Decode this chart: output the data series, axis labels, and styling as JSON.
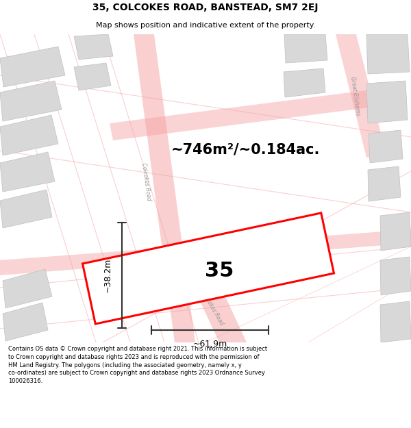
{
  "title_line1": "35, COLCOKES ROAD, BANSTEAD, SM7 2EJ",
  "title_line2": "Map shows position and indicative extent of the property.",
  "area_text": "~746m²/~0.184ac.",
  "label_width": "~61.9m",
  "label_height": "~38.2m",
  "plot_number": "35",
  "map_bg": "#f7f7f7",
  "road_color": "#f5a0a0",
  "building_color": "#d8d8d8",
  "building_edge": "#c0c0c0",
  "footnote": "Contains OS data © Crown copyright and database right 2021. This information is subject\nto Crown copyright and database rights 2023 and is reproduced with the permission of\nHM Land Registry. The polygons (including the associated geometry, namely x, y\nco-ordinates) are subject to Crown copyright and database rights 2023 Ordnance Survey\n100026316."
}
